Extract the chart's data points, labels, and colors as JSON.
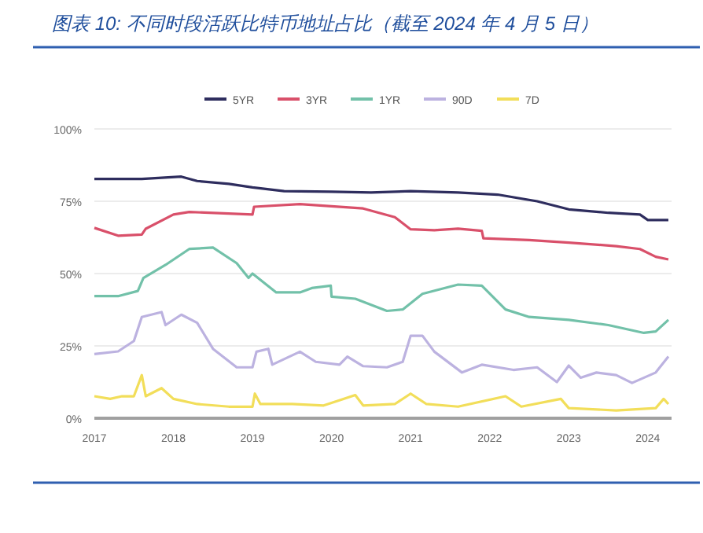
{
  "chart_data": {
    "type": "line",
    "title": "图表 10: 不同时段活跃比特币地址占比（截至 2024 年 4 月 5 日）",
    "xlim": [
      2017,
      2024.3
    ],
    "xticks": [
      2017,
      2018,
      2019,
      2020,
      2021,
      2022,
      2023,
      2024
    ],
    "ylim": [
      0,
      100
    ],
    "yticks": [
      {
        "value": 0,
        "label": "0%"
      },
      {
        "value": 25,
        "label": "25%"
      },
      {
        "value": 50,
        "label": "50%"
      },
      {
        "value": 75,
        "label": "75%"
      },
      {
        "value": 100,
        "label": "100%"
      }
    ],
    "grid": "y",
    "legend": "top",
    "marker": "none",
    "line_style": "solid",
    "series": [
      {
        "name": "5YR",
        "color": "#2e2d5e",
        "x": [
          2017,
          2017.6,
          2018.1,
          2018.3,
          2018.7,
          2019,
          2019.4,
          2020,
          2020.5,
          2021,
          2021.6,
          2022.1,
          2022.6,
          2023,
          2023.5,
          2023.9,
          2024,
          2024.26
        ],
        "values": [
          82.7,
          82.7,
          83.5,
          82,
          81,
          79.8,
          78.5,
          78.3,
          78,
          78.5,
          78,
          77.3,
          75,
          72.2,
          71,
          70.4,
          68.5,
          68.5
        ]
      },
      {
        "name": "3YR",
        "color": "#d9506a",
        "x": [
          2017,
          2017.3,
          2017.6,
          2017.65,
          2018,
          2018.2,
          2019,
          2019.02,
          2019.6,
          2020.4,
          2020.8,
          2021,
          2021.3,
          2021.6,
          2021.9,
          2021.92,
          2022.5,
          2023,
          2023.6,
          2023.9,
          2024.1,
          2024.26
        ],
        "values": [
          65.8,
          63.1,
          63.5,
          65.5,
          70.4,
          71.3,
          70.4,
          73.1,
          74,
          72.5,
          69.5,
          65.3,
          65,
          65.5,
          64.8,
          62.2,
          61.6,
          60.7,
          59.5,
          58.5,
          55.8,
          54.9
        ]
      },
      {
        "name": "1YR",
        "color": "#72c1a9",
        "x": [
          2017,
          2017.3,
          2017.55,
          2017.62,
          2017.9,
          2018.2,
          2018.5,
          2018.8,
          2018.95,
          2019,
          2019.3,
          2019.6,
          2019.75,
          2019.99,
          2020,
          2020.3,
          2020.7,
          2020.9,
          2021.15,
          2021.6,
          2021.9,
          2022.2,
          2022.5,
          2023,
          2023.5,
          2023.95,
          2024.1,
          2024.26
        ],
        "values": [
          42.2,
          42.2,
          44,
          48.5,
          53,
          58.5,
          59,
          53.6,
          48.5,
          50,
          43.5,
          43.5,
          45,
          45.8,
          42,
          41.3,
          37.1,
          37.6,
          43,
          46.2,
          45.8,
          37.6,
          35,
          34,
          32.2,
          29.5,
          30,
          34
        ]
      },
      {
        "name": "90D",
        "color": "#bcb2e0",
        "x": [
          2017,
          2017.3,
          2017.5,
          2017.6,
          2017.85,
          2017.9,
          2018.1,
          2018.3,
          2018.5,
          2018.8,
          2019,
          2019.05,
          2019.2,
          2019.25,
          2019.6,
          2019.8,
          2020.1,
          2020.2,
          2020.4,
          2020.7,
          2020.9,
          2021,
          2021.15,
          2021.3,
          2021.65,
          2021.9,
          2022.3,
          2022.6,
          2022.85,
          2023,
          2023.15,
          2023.35,
          2023.6,
          2023.8,
          2024.1,
          2024.26
        ],
        "values": [
          22.2,
          23.1,
          26.7,
          35,
          36.7,
          32.2,
          35.8,
          33,
          24,
          17.6,
          17.6,
          23,
          24,
          18.5,
          23,
          19.5,
          18.5,
          21.3,
          18,
          17.6,
          19.5,
          28.5,
          28.5,
          23,
          15.8,
          18.5,
          16.7,
          17.6,
          12.5,
          18.2,
          14,
          15.8,
          14.9,
          12.2,
          15.8,
          21.3
        ]
      },
      {
        "name": "7D",
        "color": "#f2de5a",
        "x": [
          2017,
          2017.2,
          2017.35,
          2017.5,
          2017.6,
          2017.65,
          2017.85,
          2018,
          2018.3,
          2018.7,
          2019,
          2019.03,
          2019.1,
          2019.5,
          2019.9,
          2020.3,
          2020.4,
          2020.8,
          2021,
          2021.2,
          2021.6,
          2022.2,
          2022.4,
          2022.9,
          2023,
          2023.6,
          2024.1,
          2024.2,
          2024.26
        ],
        "values": [
          7.6,
          6.7,
          7.6,
          7.6,
          14.9,
          7.6,
          10.4,
          6.7,
          4.9,
          4,
          4,
          8.5,
          4.9,
          4.9,
          4.4,
          8,
          4.4,
          4.9,
          8.5,
          4.9,
          4,
          7.6,
          4,
          6.7,
          3.5,
          2.7,
          3.5,
          6.7,
          4.9
        ]
      }
    ]
  }
}
